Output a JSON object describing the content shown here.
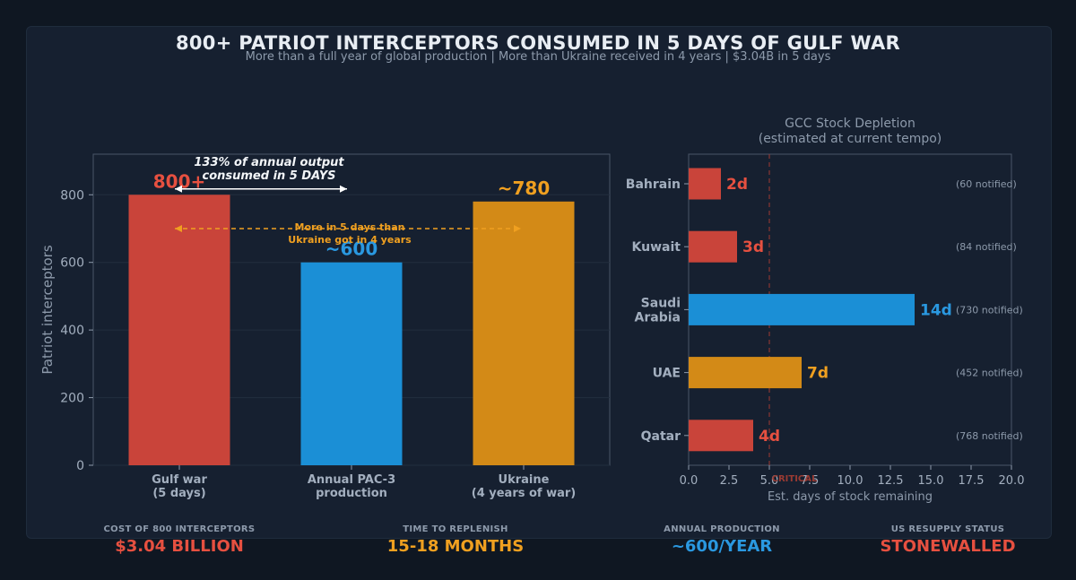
{
  "header": {
    "title": "800+ PATRIOT INTERCEPTORS CONSUMED IN 5 DAYS OF GULF WAR",
    "subtitle": "More than a full year of global production  |  More than Ukraine received in 4 years  |  $3.04B in 5 days"
  },
  "colors": {
    "red": "#c9443a",
    "blue": "#1b8fd6",
    "orange": "#d38a17",
    "red_text": "#e65040",
    "blue_text": "#2a98e0",
    "orange_text": "#f0a020"
  },
  "chart_data": [
    {
      "type": "bar",
      "ylabel": "Patriot interceptors",
      "ylim": [
        0,
        920
      ],
      "yticks": [
        0,
        200,
        400,
        600,
        800
      ],
      "categories": [
        "Gulf war\n(5 days)",
        "Annual PAC-3\nproduction",
        "Ukraine\n(4 years of war)"
      ],
      "values": [
        800,
        600,
        780
      ],
      "value_labels": [
        "800+",
        "~600",
        "~780"
      ],
      "bar_colors": [
        "#c9443a",
        "#1b8fd6",
        "#d38a17"
      ],
      "label_colors": [
        "#e65040",
        "#2a98e0",
        "#f0a020"
      ],
      "annotations": [
        {
          "text": "133% of annual output\nconsumed in 5 DAYS",
          "style": "white-bold-italic"
        },
        {
          "text": "More in 5 days than\nUkraine got in 4 years",
          "style": "orange-bold"
        }
      ]
    },
    {
      "type": "bar",
      "orientation": "horizontal",
      "title": "GCC Stock Depletion\n(estimated at current tempo)",
      "xlabel": "Est. days of stock remaining",
      "xlim": [
        0,
        20
      ],
      "xticks": [
        0.0,
        2.5,
        5.0,
        7.5,
        10.0,
        12.5,
        15.0,
        17.5,
        20.0
      ],
      "xtick_labels": [
        "0.0",
        "2.5",
        "5.0",
        "7.5",
        "10.0",
        "12.5",
        "15.0",
        "17.5",
        "20.0"
      ],
      "categories": [
        "Bahrain",
        "Kuwait",
        "Saudi\nArabia",
        "UAE",
        "Qatar"
      ],
      "values": [
        2,
        3,
        14,
        7,
        4
      ],
      "value_labels": [
        "2d",
        "3d",
        "14d",
        "7d",
        "4d"
      ],
      "notes": [
        "(60 notified)",
        "(84 notified)",
        "(730 notified)",
        "(452 notified)",
        "(768 notified)"
      ],
      "bar_colors": [
        "#c9443a",
        "#c9443a",
        "#1b8fd6",
        "#d38a17",
        "#c9443a"
      ],
      "label_colors": [
        "#e65040",
        "#e65040",
        "#2a98e0",
        "#f0a020",
        "#e65040"
      ],
      "critical_line": {
        "value": 5,
        "label": "CRITICAL"
      }
    }
  ],
  "stats": [
    {
      "label": "COST OF 800 INTERCEPTORS",
      "value": "$3.04 BILLION",
      "color": "#e65040"
    },
    {
      "label": "TIME TO REPLENISH",
      "value": "15-18 MONTHS",
      "color": "#f0a020"
    },
    {
      "label": "ANNUAL PRODUCTION",
      "value": "~600/YEAR",
      "color": "#2a98e0"
    },
    {
      "label": "US RESUPPLY STATUS",
      "value": "STONEWALLED",
      "color": "#e65040"
    }
  ]
}
